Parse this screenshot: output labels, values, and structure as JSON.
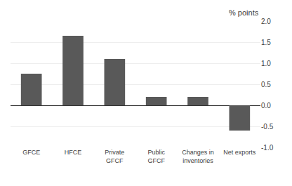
{
  "chart_data": {
    "type": "bar",
    "categories": [
      "GFCE",
      "HFCE",
      "Private\nGFCF",
      "Public\nGFCF",
      "Changes in\ninventories",
      "Net exports"
    ],
    "values": [
      0.75,
      1.65,
      1.1,
      0.2,
      0.2,
      -0.6
    ],
    "color": "#595959",
    "ylabel": "% points",
    "ylim": [
      -1.0,
      2.0
    ],
    "yticks": [
      {
        "value": -1.0,
        "label": "-1.0"
      },
      -0.5,
      {
        "value": 0.0,
        "label": "0.0"
      },
      0.5,
      {
        "value": 1.0,
        "label": "1.0"
      },
      1.5,
      {
        "value": 2.0,
        "label": "2.0"
      }
    ],
    "grid": true
  }
}
